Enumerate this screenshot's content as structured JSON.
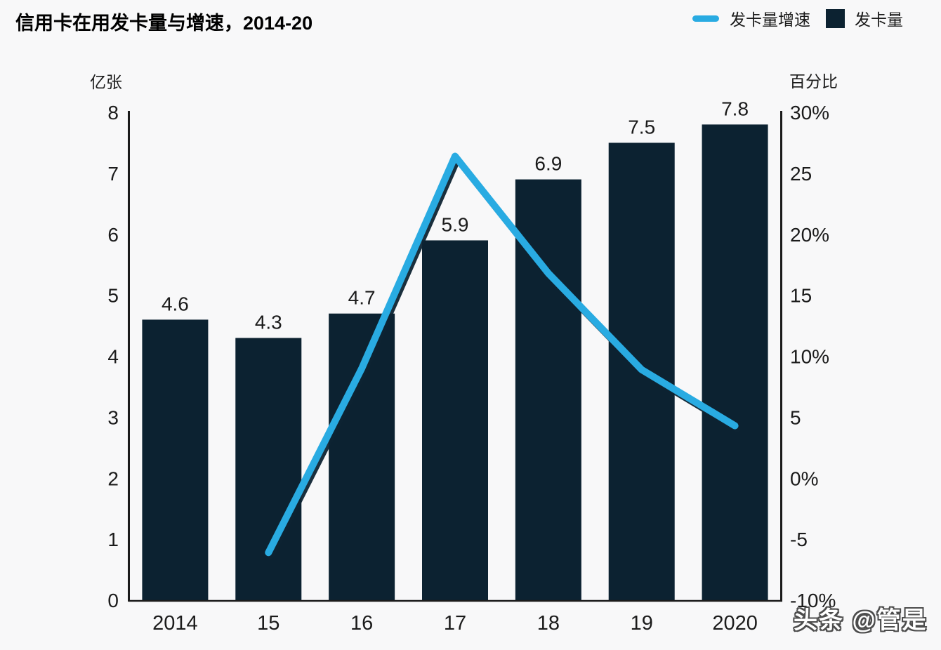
{
  "title": "信用卡在用发卡量与增速，2014-20",
  "legend": {
    "items": [
      {
        "label": "发卡量增速",
        "swatch": "line",
        "color": "#29ABE2"
      },
      {
        "label": "发卡量",
        "swatch": "square",
        "color": "#0C2231"
      }
    ]
  },
  "watermark": "头条 @管是",
  "colors": {
    "background": "#F8F8F9",
    "bar": "#0C2231",
    "line": "#29ABE2",
    "line_shadow": "#0E2433",
    "axis": "#1b1b1b",
    "text": "#1b1b1b"
  },
  "chart_data": {
    "type": "combo",
    "title": "信用卡在用发卡量与增速，2014-20",
    "categories": [
      "2014",
      "15",
      "16",
      "17",
      "18",
      "19",
      "2020"
    ],
    "series": [
      {
        "name": "发卡量",
        "type": "bar",
        "axis": "left",
        "unit": "亿张",
        "values": [
          4.6,
          4.3,
          4.7,
          5.9,
          6.9,
          7.5,
          7.8
        ],
        "value_labels": [
          "4.6",
          "4.3",
          "4.7",
          "5.9",
          "6.9",
          "7.5",
          "7.8"
        ],
        "color": "#0C2231"
      },
      {
        "name": "发卡量增速",
        "type": "line",
        "axis": "right",
        "unit": "百分比",
        "categories": [
          "15",
          "16",
          "17",
          "18",
          "19",
          "2020"
        ],
        "values": [
          -6.1,
          9.0,
          26.4,
          16.8,
          8.9,
          4.3
        ],
        "color": "#29ABE2"
      }
    ],
    "left_axis": {
      "unit": "亿张",
      "min": 0,
      "max": 8,
      "tick_labels": [
        "8",
        "7",
        "6",
        "5",
        "4",
        "3",
        "2",
        "1",
        "0"
      ]
    },
    "right_axis": {
      "unit": "百分比",
      "min": -10,
      "max": 30,
      "tick_labels": [
        "30%",
        "25",
        "20%",
        "15",
        "10%",
        "5",
        "0%",
        "-5",
        "-10%"
      ]
    },
    "grid": false,
    "legend_position": "top-right"
  }
}
